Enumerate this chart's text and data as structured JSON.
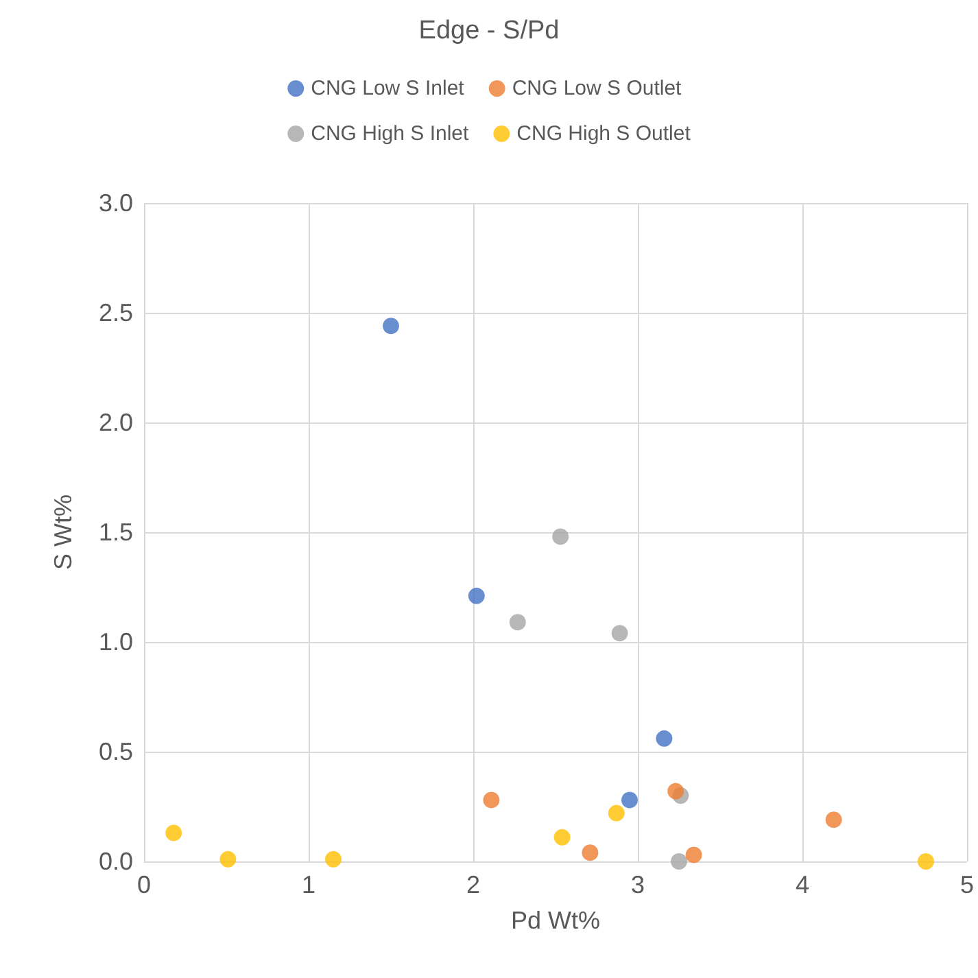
{
  "chart_data": {
    "type": "scatter",
    "title": "Edge - S/Pd",
    "xlabel": "Pd Wt%",
    "ylabel": "S Wt%",
    "xlim": [
      0,
      5
    ],
    "xticks": [
      0,
      1,
      2,
      3,
      4,
      5
    ],
    "ylim": [
      0,
      3
    ],
    "yticks": [
      {
        "value": 0,
        "label": "0.0"
      },
      {
        "value": 0.5,
        "label": "0.5"
      },
      {
        "value": 1,
        "label": "1.0"
      },
      {
        "value": 1.5,
        "label": "1.5"
      },
      {
        "value": 2,
        "label": "2.0"
      },
      {
        "value": 2.5,
        "label": "2.5"
      },
      {
        "value": 3,
        "label": "3.0"
      }
    ],
    "grid": true,
    "legend": "top",
    "marker": "circle",
    "series": [
      {
        "name": "CNG Low S Inlet",
        "color": "#4472c4",
        "x": [
          1.5,
          2.02,
          3.16,
          2.95
        ],
        "values": [
          2.44,
          1.21,
          0.56,
          0.28
        ]
      },
      {
        "name": "CNG Low S Outlet",
        "color": "#ed7d31",
        "x": [
          2.11,
          2.71,
          3.23,
          3.34,
          4.19
        ],
        "values": [
          0.28,
          0.04,
          0.32,
          0.03,
          0.19
        ]
      },
      {
        "name": "CNG High S Inlet",
        "color": "#a5a5a5",
        "x": [
          2.53,
          2.27,
          2.89,
          3.26,
          3.25
        ],
        "values": [
          1.48,
          1.09,
          1.04,
          0.3,
          0.0
        ]
      },
      {
        "name": "CNG High S Outlet",
        "color": "#ffc000",
        "x": [
          0.18,
          0.51,
          1.15,
          2.54,
          2.87,
          4.75
        ],
        "values": [
          0.13,
          0.01,
          0.01,
          0.11,
          0.22,
          0.0
        ]
      }
    ]
  }
}
